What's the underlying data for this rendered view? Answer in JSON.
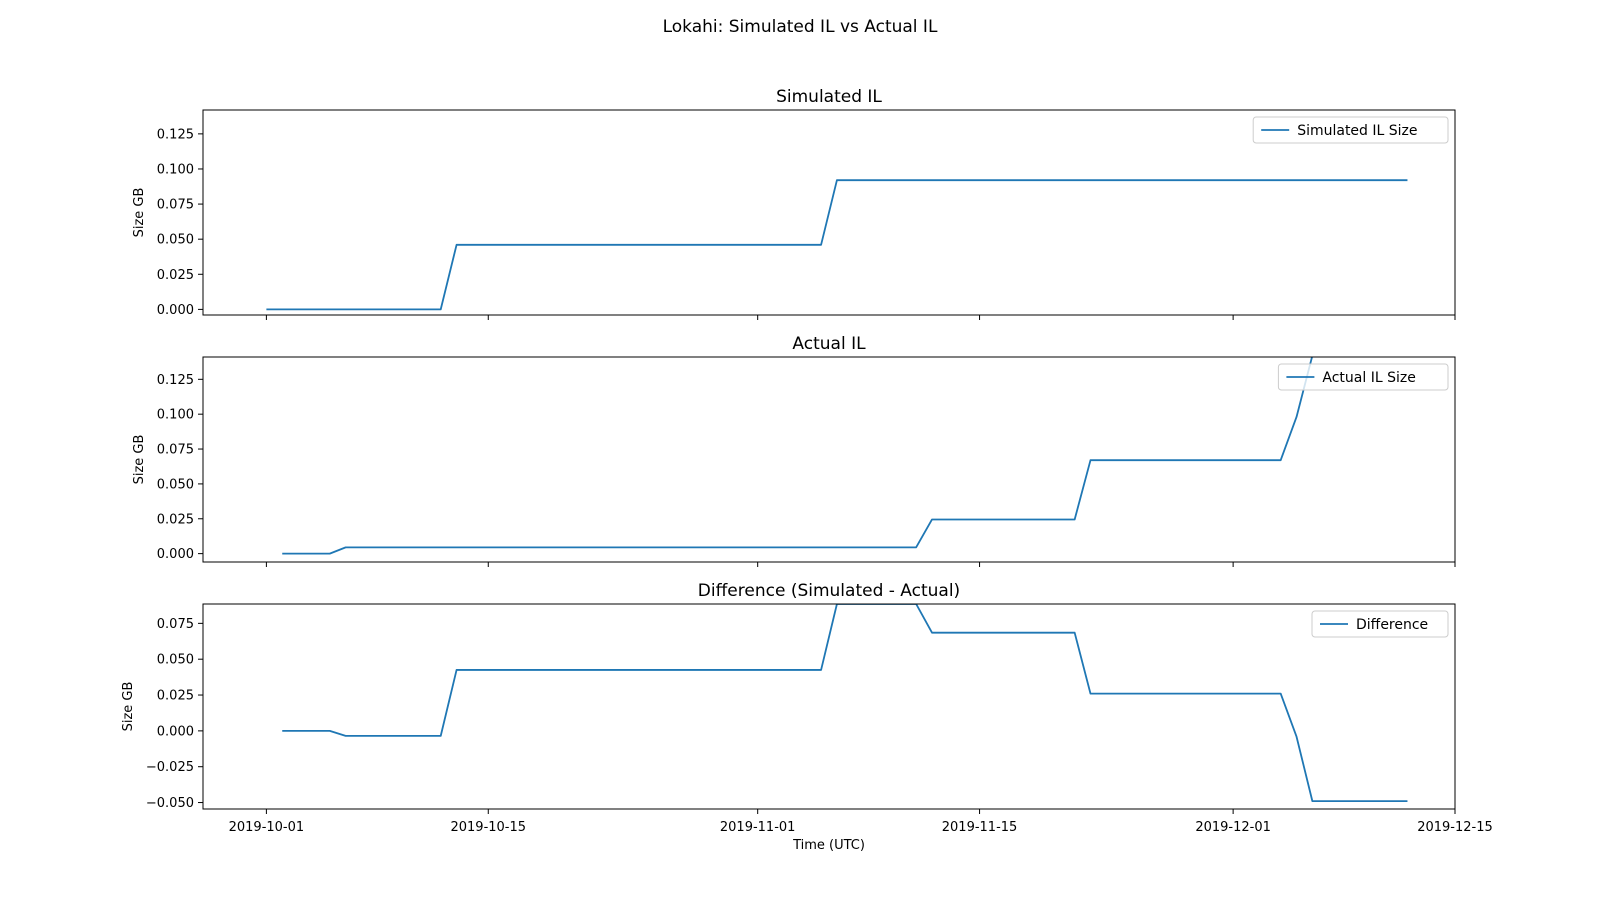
{
  "figure": {
    "title": "Lokahi: Simulated IL vs Actual IL"
  },
  "colors": {
    "line": "#1f77b4",
    "axes": "#000000",
    "background": "#ffffff",
    "legend_border": "#cccccc"
  },
  "chart_data": [
    {
      "type": "line",
      "title": "Simulated IL",
      "xlabel": "",
      "ylabel": "Size GB",
      "xlim": [
        "2019-09-27",
        "2019-12-15"
      ],
      "ylim": [
        -0.004,
        0.142
      ],
      "yticks": [
        0.0,
        0.025,
        0.05,
        0.075,
        0.1,
        0.125
      ],
      "ytick_labels": [
        "0.000",
        "0.025",
        "0.050",
        "0.075",
        "0.100",
        "0.125"
      ],
      "xticks": [
        "2019-10-01",
        "2019-10-15",
        "2019-11-01",
        "2019-11-15",
        "2019-12-01",
        "2019-12-15"
      ],
      "xtick_labels": [],
      "legend_position": "top-right",
      "grid": false,
      "series": [
        {
          "name": "Simulated IL Size",
          "x": [
            "2019-10-01",
            "2019-10-12",
            "2019-10-13",
            "2019-11-05",
            "2019-11-06",
            "2019-12-12"
          ],
          "y": [
            0.0,
            0.0,
            0.046,
            0.046,
            0.092,
            0.092
          ]
        }
      ]
    },
    {
      "type": "line",
      "title": "Actual IL",
      "xlabel": "",
      "ylabel": "Size GB",
      "xlim": [
        "2019-09-27",
        "2019-12-15"
      ],
      "ylim": [
        -0.006,
        0.141
      ],
      "yticks": [
        0.0,
        0.025,
        0.05,
        0.075,
        0.1,
        0.125
      ],
      "ytick_labels": [
        "0.000",
        "0.025",
        "0.050",
        "0.075",
        "0.100",
        "0.125"
      ],
      "xticks": [
        "2019-10-01",
        "2019-10-15",
        "2019-11-01",
        "2019-11-15",
        "2019-12-01",
        "2019-12-15"
      ],
      "xtick_labels": [],
      "legend_position": "top-right",
      "grid": false,
      "series": [
        {
          "name": "Actual IL Size",
          "x": [
            "2019-10-02",
            "2019-10-05",
            "2019-10-06",
            "2019-11-11",
            "2019-11-12",
            "2019-11-21",
            "2019-11-22",
            "2019-12-04",
            "2019-12-05",
            "2019-12-06"
          ],
          "y": [
            0.0,
            0.0,
            0.0045,
            0.0045,
            0.0245,
            0.0245,
            0.067,
            0.067,
            0.098,
            0.142
          ]
        }
      ]
    },
    {
      "type": "line",
      "title": "Difference (Simulated - Actual)",
      "xlabel": "Time (UTC)",
      "ylabel": "Size GB",
      "xlim": [
        "2019-09-27",
        "2019-12-15"
      ],
      "ylim": [
        -0.0545,
        0.0885
      ],
      "yticks": [
        -0.05,
        -0.025,
        0.0,
        0.025,
        0.05,
        0.075
      ],
      "ytick_labels": [
        "−0.050",
        "−0.025",
        "0.000",
        "0.025",
        "0.050",
        "0.075"
      ],
      "xticks": [
        "2019-10-01",
        "2019-10-15",
        "2019-11-01",
        "2019-11-15",
        "2019-12-01",
        "2019-12-15"
      ],
      "xtick_labels": [
        "2019-10-01",
        "2019-10-15",
        "2019-11-01",
        "2019-11-15",
        "2019-12-01",
        "2019-12-15"
      ],
      "legend_position": "top-right",
      "grid": false,
      "series": [
        {
          "name": "Difference",
          "x": [
            "2019-10-02",
            "2019-10-05",
            "2019-10-06",
            "2019-10-12",
            "2019-10-13",
            "2019-11-05",
            "2019-11-06",
            "2019-11-11",
            "2019-11-12",
            "2019-11-21",
            "2019-11-22",
            "2019-12-04",
            "2019-12-05",
            "2019-12-06",
            "2019-12-12"
          ],
          "y": [
            0.0,
            0.0,
            -0.0035,
            -0.0035,
            0.0425,
            0.0425,
            0.0885,
            0.0885,
            0.0685,
            0.0685,
            0.026,
            0.026,
            -0.004,
            -0.049,
            -0.049
          ]
        }
      ]
    }
  ]
}
